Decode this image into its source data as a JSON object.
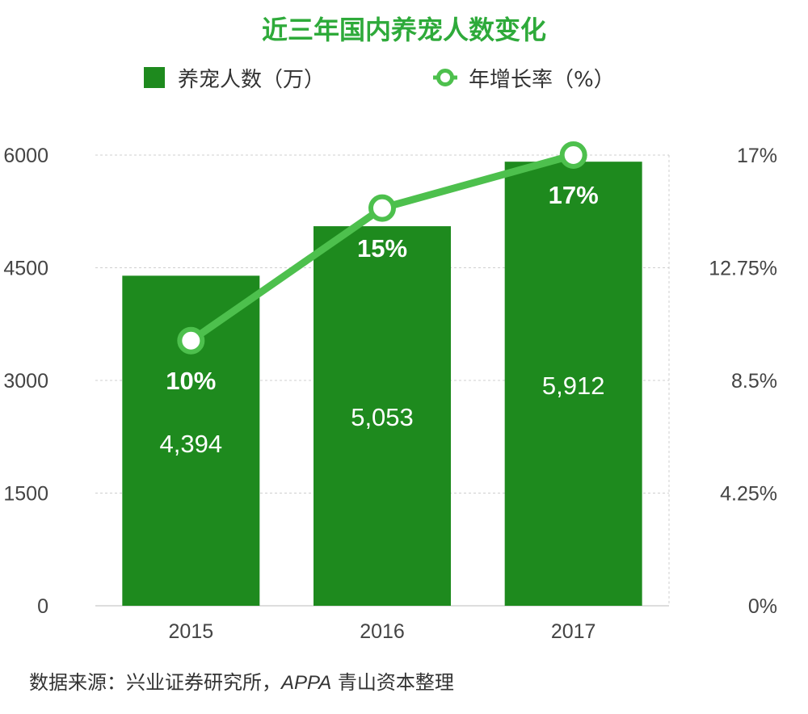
{
  "title": "近三年国内养宠人数变化",
  "legend": {
    "bar_label": "养宠人数（万）",
    "line_label": "年增长率（%）"
  },
  "source": {
    "prefix": "数据来源：兴业证券研究所，",
    "latin": "APPA",
    "suffix": " 青山资本整理"
  },
  "colors": {
    "bar": "#1e8a1e",
    "line": "#4dc04d",
    "title": "#2eaa3a"
  },
  "chart_data": {
    "type": "bar",
    "title": "近三年国内养宠人数变化",
    "categories": [
      "2015",
      "2016",
      "2017"
    ],
    "series": [
      {
        "name": "养宠人数（万）",
        "type": "bar",
        "axis": "left",
        "values": [
          4394,
          5053,
          5912
        ],
        "labels": [
          "4,394",
          "5,053",
          "5,912"
        ]
      },
      {
        "name": "年增长率（%）",
        "type": "line",
        "axis": "right",
        "values": [
          10,
          15,
          17
        ],
        "labels": [
          "10%",
          "15%",
          "17%"
        ]
      }
    ],
    "left_axis": {
      "ylim": [
        0,
        6000
      ],
      "ticks": [
        "0",
        "1500",
        "3000",
        "4500",
        "6000"
      ]
    },
    "right_axis": {
      "ylim": [
        0,
        17
      ],
      "ticks": [
        "0%",
        "4.25%",
        "8.5%",
        "12.75%",
        "17%"
      ]
    },
    "grid": true,
    "legend_position": "top"
  }
}
